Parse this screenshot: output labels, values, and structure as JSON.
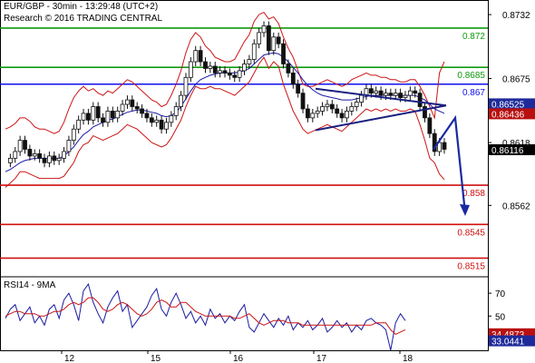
{
  "chart_data": {
    "type": "candlestick",
    "header": {
      "symbol_line": "EUR/GBP - 30min - 13:29:48 (UTC+2)",
      "research_line": "Research © 2016 TRADING CENTRAL"
    },
    "price_axis": {
      "ylim": [
        0.85,
        0.8745
      ],
      "tick_labels": [
        "0.8732",
        "0.8675",
        "0.8618",
        "0.8562"
      ],
      "tick_values": [
        0.8732,
        0.8675,
        0.8618,
        0.8562
      ]
    },
    "x_axis": {
      "day_labels": [
        "12",
        "15",
        "16",
        "17",
        "18"
      ],
      "day_positions": [
        68,
        163,
        254,
        346,
        441
      ]
    },
    "levels": [
      {
        "value": 0.872,
        "label": "0.872",
        "color": "#109a10"
      },
      {
        "value": 0.8685,
        "label": "0.8685",
        "color": "#109a10"
      },
      {
        "value": 0.867,
        "label": "0.867",
        "color": "#1010ee"
      },
      {
        "value": 0.858,
        "label": "0.858",
        "color": "#d01010"
      },
      {
        "value": 0.8545,
        "label": "0.8545",
        "color": "#d01010"
      },
      {
        "value": 0.8515,
        "label": "0.8515",
        "color": "#d01010"
      }
    ],
    "price_tags": [
      {
        "value": 0.86525,
        "label": "0.86525",
        "bg": "#1e2a9a"
      },
      {
        "value": 0.86436,
        "label": "0.86436",
        "bg": "#b81010"
      },
      {
        "value": 0.86116,
        "label": "0.86116",
        "bg": "#000000"
      }
    ],
    "price_series": [
      0.86,
      0.8604,
      0.861,
      0.862,
      0.8612,
      0.8606,
      0.8608,
      0.8604,
      0.86,
      0.8606,
      0.8602,
      0.8604,
      0.861,
      0.862,
      0.863,
      0.8638,
      0.8644,
      0.8638,
      0.865,
      0.864,
      0.8636,
      0.8646,
      0.864,
      0.8646,
      0.8652,
      0.8656,
      0.865,
      0.8648,
      0.8644,
      0.864,
      0.8636,
      0.8638,
      0.863,
      0.8636,
      0.8642,
      0.865,
      0.866,
      0.8676,
      0.869,
      0.87,
      0.869,
      0.8684,
      0.8686,
      0.868,
      0.8682,
      0.868,
      0.8678,
      0.8676,
      0.8682,
      0.8688,
      0.8692,
      0.8706,
      0.8716,
      0.8722,
      0.87,
      0.8712,
      0.8706,
      0.8688,
      0.868,
      0.867,
      0.8662,
      0.8648,
      0.864,
      0.8644,
      0.8646,
      0.865,
      0.8652,
      0.8648,
      0.8644,
      0.864,
      0.8646,
      0.865,
      0.8654,
      0.866,
      0.8666,
      0.8662,
      0.8664,
      0.866,
      0.8662,
      0.866,
      0.8662,
      0.8658,
      0.866,
      0.8664,
      0.8662,
      0.865,
      0.864,
      0.8626,
      0.861,
      0.8618,
      0.8612
    ],
    "bollinger_upper": [
      0.863,
      0.8632,
      0.8635,
      0.864,
      0.864,
      0.8637,
      0.8632,
      0.863,
      0.863,
      0.8628,
      0.8626,
      0.8628,
      0.8636,
      0.8648,
      0.8658,
      0.8664,
      0.8668,
      0.8664,
      0.8666,
      0.8662,
      0.866,
      0.8664,
      0.8662,
      0.8666,
      0.867,
      0.8674,
      0.8672,
      0.8668,
      0.8664,
      0.866,
      0.8656,
      0.8654,
      0.865,
      0.8652,
      0.866,
      0.867,
      0.8682,
      0.8698,
      0.871,
      0.8716,
      0.8712,
      0.8704,
      0.87,
      0.8694,
      0.8692,
      0.869,
      0.869,
      0.8692,
      0.87,
      0.8708,
      0.8714,
      0.8726,
      0.8732,
      0.8734,
      0.8728,
      0.873,
      0.8724,
      0.8712,
      0.8702,
      0.8694,
      0.8682,
      0.867,
      0.8668,
      0.8668,
      0.867,
      0.8672,
      0.8674,
      0.8672,
      0.867,
      0.8668,
      0.867,
      0.8674,
      0.8676,
      0.8678,
      0.868,
      0.8678,
      0.8678,
      0.8676,
      0.8676,
      0.8674,
      0.8674,
      0.8672,
      0.8672,
      0.8674,
      0.8674,
      0.8668,
      0.866,
      0.865,
      0.864,
      0.868,
      0.869
    ],
    "bollinger_lower": [
      0.8578,
      0.8582,
      0.8586,
      0.8592,
      0.8592,
      0.859,
      0.8588,
      0.8586,
      0.8586,
      0.8586,
      0.8586,
      0.8586,
      0.8588,
      0.8594,
      0.86,
      0.861,
      0.8616,
      0.8618,
      0.8624,
      0.8622,
      0.862,
      0.8622,
      0.8624,
      0.8626,
      0.863,
      0.8634,
      0.8632,
      0.863,
      0.8626,
      0.8622,
      0.8618,
      0.8616,
      0.8614,
      0.8616,
      0.8622,
      0.863,
      0.8638,
      0.865,
      0.866,
      0.8668,
      0.8666,
      0.8666,
      0.8668,
      0.8666,
      0.8666,
      0.8664,
      0.8662,
      0.866,
      0.8664,
      0.8668,
      0.8672,
      0.868,
      0.8688,
      0.8694,
      0.8684,
      0.869,
      0.8686,
      0.867,
      0.8658,
      0.8646,
      0.8638,
      0.863,
      0.8626,
      0.8628,
      0.863,
      0.8632,
      0.8634,
      0.8632,
      0.863,
      0.8628,
      0.8632,
      0.8636,
      0.864,
      0.8644,
      0.8648,
      0.8646,
      0.8648,
      0.8646,
      0.8648,
      0.8646,
      0.8648,
      0.8646,
      0.8646,
      0.8648,
      0.8646,
      0.8634,
      0.862,
      0.8604,
      0.86,
      0.859,
      0.8585
    ],
    "moving_average": [
      0.8592,
      0.8594,
      0.8597,
      0.86,
      0.8602,
      0.8603,
      0.8604,
      0.8604,
      0.8604,
      0.8604,
      0.8604,
      0.8604,
      0.8606,
      0.861,
      0.8614,
      0.862,
      0.8625,
      0.8628,
      0.8632,
      0.8634,
      0.8636,
      0.8638,
      0.8639,
      0.8641,
      0.8643,
      0.8645,
      0.8646,
      0.8647,
      0.8647,
      0.8646,
      0.8645,
      0.8644,
      0.8642,
      0.8641,
      0.8642,
      0.8645,
      0.865,
      0.8657,
      0.8664,
      0.867,
      0.8674,
      0.8676,
      0.8678,
      0.8679,
      0.868,
      0.868,
      0.868,
      0.868,
      0.8681,
      0.8682,
      0.8684,
      0.8688,
      0.8692,
      0.8696,
      0.8697,
      0.8698,
      0.8697,
      0.8694,
      0.869,
      0.8685,
      0.868,
      0.8674,
      0.8669,
      0.8665,
      0.8662,
      0.866,
      0.8659,
      0.8658,
      0.8657,
      0.8656,
      0.8656,
      0.8656,
      0.8657,
      0.8658,
      0.8659,
      0.866,
      0.866,
      0.866,
      0.866,
      0.866,
      0.866,
      0.866,
      0.866,
      0.866,
      0.866,
      0.8658,
      0.8656,
      0.8652,
      0.8648,
      0.8646,
      0.8644
    ],
    "triangle_upper_line": {
      "from": [
        348,
        0.8666
      ],
      "to": [
        492,
        0.8651
      ]
    },
    "triangle_lower_line": {
      "from": [
        348,
        0.8629
      ],
      "to": [
        492,
        0.8651
      ]
    },
    "forecast_arrow": {
      "points": [
        [
          478,
          0.8612
        ],
        [
          502,
          0.864
        ],
        [
          513,
          0.8555
        ]
      ],
      "color": "#1a2aa0"
    },
    "rsi": {
      "title": "RSI14 - 9MA",
      "ylim": [
        20,
        82
      ],
      "tick_labels": [
        "70",
        "50"
      ],
      "tick_values": [
        70,
        50
      ],
      "value_tags": [
        {
          "value": 34.4873,
          "label": "34.4873",
          "bg": "#b81010"
        },
        {
          "value": 33.0441,
          "label": "33.0441",
          "bg": "#1e2a9a"
        }
      ],
      "rsi_series": [
        48,
        56,
        60,
        46,
        52,
        58,
        44,
        50,
        42,
        56,
        60,
        48,
        64,
        70,
        60,
        46,
        72,
        78,
        62,
        52,
        44,
        58,
        66,
        72,
        54,
        60,
        40,
        46,
        52,
        58,
        68,
        74,
        56,
        50,
        62,
        70,
        60,
        48,
        54,
        44,
        50,
        42,
        56,
        48,
        52,
        44,
        50,
        46,
        54,
        60,
        40,
        36,
        44,
        52,
        46,
        40,
        48,
        42,
        50,
        38,
        44,
        40,
        46,
        38,
        42,
        48,
        36,
        40,
        46,
        40,
        44,
        36,
        42,
        38,
        46,
        48,
        44,
        42,
        38,
        20,
        44,
        52,
        46
      ],
      "ma_series": [
        50,
        52,
        54,
        54,
        52,
        52,
        52,
        50,
        50,
        52,
        54,
        54,
        56,
        60,
        62,
        60,
        62,
        66,
        66,
        62,
        56,
        54,
        56,
        60,
        62,
        60,
        56,
        52,
        50,
        52,
        56,
        62,
        64,
        62,
        58,
        58,
        62,
        62,
        58,
        54,
        52,
        50,
        50,
        50,
        50,
        50,
        50,
        48,
        48,
        50,
        52,
        48,
        44,
        42,
        44,
        46,
        46,
        46,
        44,
        44,
        44,
        42,
        42,
        42,
        42,
        42,
        42,
        42,
        42,
        42,
        42,
        42,
        42,
        42,
        42,
        42,
        44,
        44,
        44,
        38,
        34,
        36,
        38
      ]
    }
  }
}
